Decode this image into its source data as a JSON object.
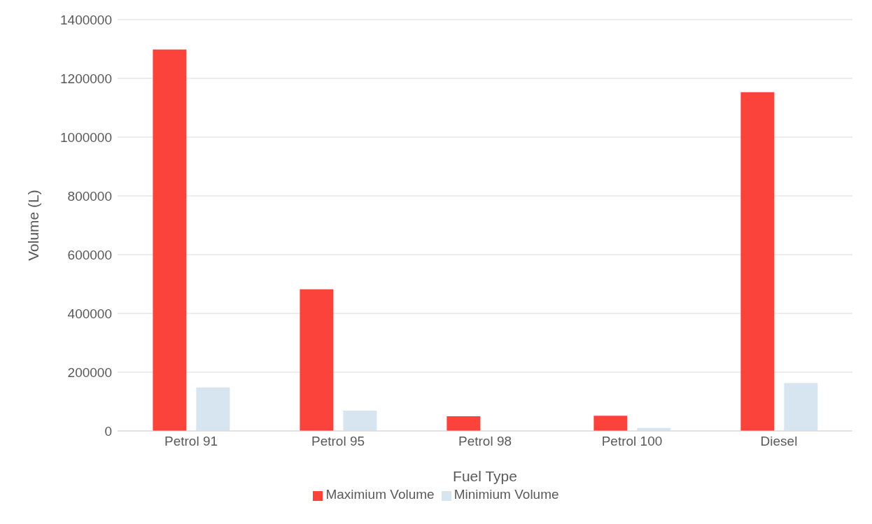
{
  "chart_data": {
    "type": "bar",
    "xlabel": "Fuel Type",
    "ylabel": "Volume (L)",
    "categories": [
      "Petrol 91",
      "Petrol 95",
      "Petrol 98",
      "Petrol 100",
      "Diesel"
    ],
    "series": [
      {
        "name": "Maximium Volume",
        "color": "#fc433b",
        "values": [
          1298000,
          482000,
          50000,
          52000,
          1153000
        ]
      },
      {
        "name": "Minimium Volume",
        "color": "#d6e5ef",
        "values": [
          148000,
          69000,
          null,
          10000,
          163000
        ]
      }
    ],
    "ylim": [
      0,
      1400000
    ],
    "yticks": [
      0,
      200000,
      400000,
      600000,
      800000,
      1000000,
      1200000,
      1400000
    ],
    "grid": "y",
    "legend": "bottom"
  }
}
